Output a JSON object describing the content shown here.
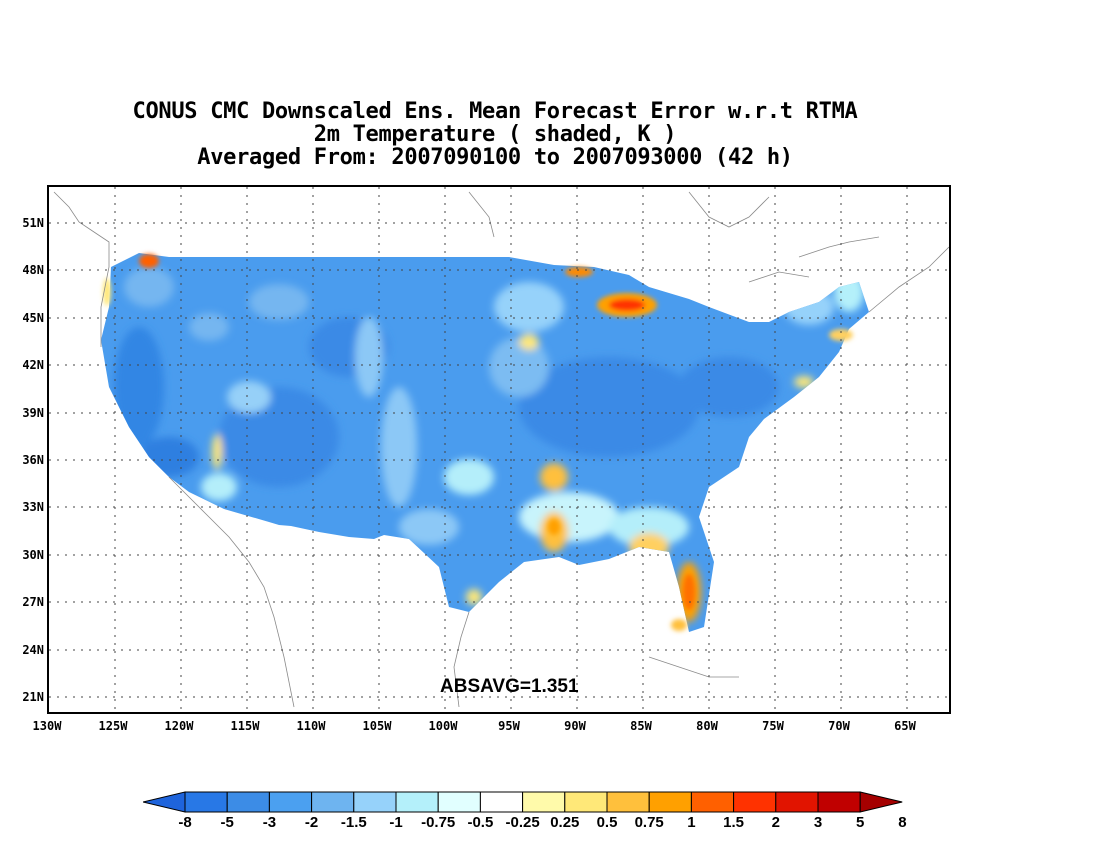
{
  "title": {
    "line1": "CONUS CMC Downscaled Ens. Mean Forecast Error w.r.t RTMA",
    "line2": "2m Temperature ( shaded, K )",
    "line3": "Averaged From: 2007090100 to 2007093000 (42 h)"
  },
  "annotation": "ABSAVG=1.351",
  "lat_labels": [
    "51N",
    "48N",
    "45N",
    "42N",
    "39N",
    "36N",
    "33N",
    "30N",
    "27N",
    "24N",
    "21N"
  ],
  "lon_labels": [
    "130W",
    "125W",
    "120W",
    "115W",
    "110W",
    "105W",
    "100W",
    "95W",
    "90W",
    "85W",
    "80W",
    "75W",
    "70W",
    "65W"
  ],
  "colorbar": {
    "labels": [
      "-8",
      "-5",
      "-3",
      "-2",
      "-1.5",
      "-1",
      "-0.75",
      "-0.5",
      "-0.25",
      "0.25",
      "0.5",
      "0.75",
      "1",
      "1.5",
      "2",
      "3",
      "5",
      "8"
    ],
    "colors": [
      "#1e64dc",
      "#2878e6",
      "#3c8ce6",
      "#4ba0f0",
      "#6eb4f0",
      "#96d2fa",
      "#b4f0fa",
      "#e1ffff",
      "#ffffff",
      "#fffaaa",
      "#ffe878",
      "#ffc03c",
      "#ffa000",
      "#ff6000",
      "#ff3200",
      "#e11400",
      "#c00000",
      "#a50000"
    ]
  },
  "grid": "dotted"
}
